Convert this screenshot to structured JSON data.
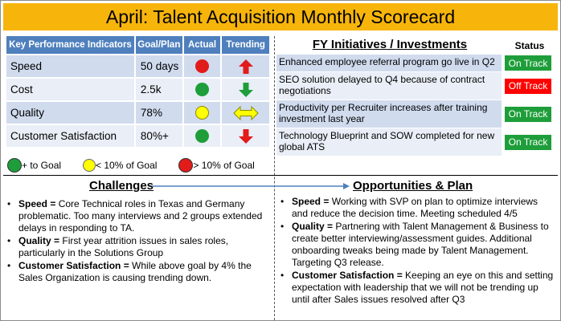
{
  "title": "April: Talent Acquisition Monthly Scorecard",
  "kpi": {
    "headers": [
      "Key Performance Indicators",
      "Goal/Plan",
      "Actual",
      "Trending"
    ],
    "rows": [
      {
        "label": "Speed",
        "goal": "50 days",
        "actual": "red",
        "trend": "up-red"
      },
      {
        "label": "Cost",
        "goal": "2.5k",
        "actual": "green",
        "trend": "down-green"
      },
      {
        "label": "Quality",
        "goal": "78%",
        "actual": "yellow",
        "trend": "both-yellow"
      },
      {
        "label": "Customer Satisfaction",
        "goal": "80%+",
        "actual": "green",
        "trend": "down-red"
      }
    ]
  },
  "legend": {
    "green": "+ to Goal",
    "yellow": "< 10% of Goal",
    "red": "> 10% of Goal"
  },
  "initiatives": {
    "title": "FY Initiatives / Investments",
    "status_header": "Status",
    "items": [
      {
        "text": "Enhanced employee referral program go live in Q2",
        "status": "On Track",
        "color": "#1e9e3a"
      },
      {
        "text": "SEO solution delayed to Q4 because of contract negotiations",
        "status": "Off Track",
        "color": "#ff0000"
      },
      {
        "text": "Productivity per Recruiter increases after training investment last year",
        "status": "On Track",
        "color": "#1e9e3a"
      },
      {
        "text": "Technology Blueprint and SOW completed for new global ATS",
        "status": "On Track",
        "color": "#1e9e3a"
      }
    ]
  },
  "challenges": {
    "title": "Challenges",
    "items": [
      {
        "label": "Speed =",
        "text": " Core Technical roles in Texas and Germany problematic. Too many interviews and 2 groups extended delays in responding to TA."
      },
      {
        "label": "Quality =",
        "text": " First year attrition issues in sales roles, particularly in the Solutions Group"
      },
      {
        "label": "Customer Satisfaction =",
        "text": " While above goal by 4% the Sales Organization is causing trending down."
      }
    ]
  },
  "opportunities": {
    "title": "Opportunities & Plan",
    "items": [
      {
        "label": "Speed =",
        "text": " Working with SVP on plan to optimize interviews and reduce the decision time. Meeting scheduled 4/5"
      },
      {
        "label": "Quality =",
        "text": " Partnering with Talent Management & Business to create better interviewing/assessment guides. Additional onboarding tweaks being made by Talent Management. Targeting Q3 release."
      },
      {
        "label": "Customer Satisfaction =",
        "text": " Keeping an eye on this and setting expectation with leadership that we will not be trending up until after Sales issues resolved after Q3"
      }
    ]
  },
  "colors": {
    "title_bg": "#f7b50c",
    "header_bg": "#4f80bd",
    "row_dark": "#d0dbee",
    "row_light": "#e9eef7",
    "green": "#1e9e3a",
    "red": "#e21b1b",
    "yellow": "#ffff00"
  }
}
